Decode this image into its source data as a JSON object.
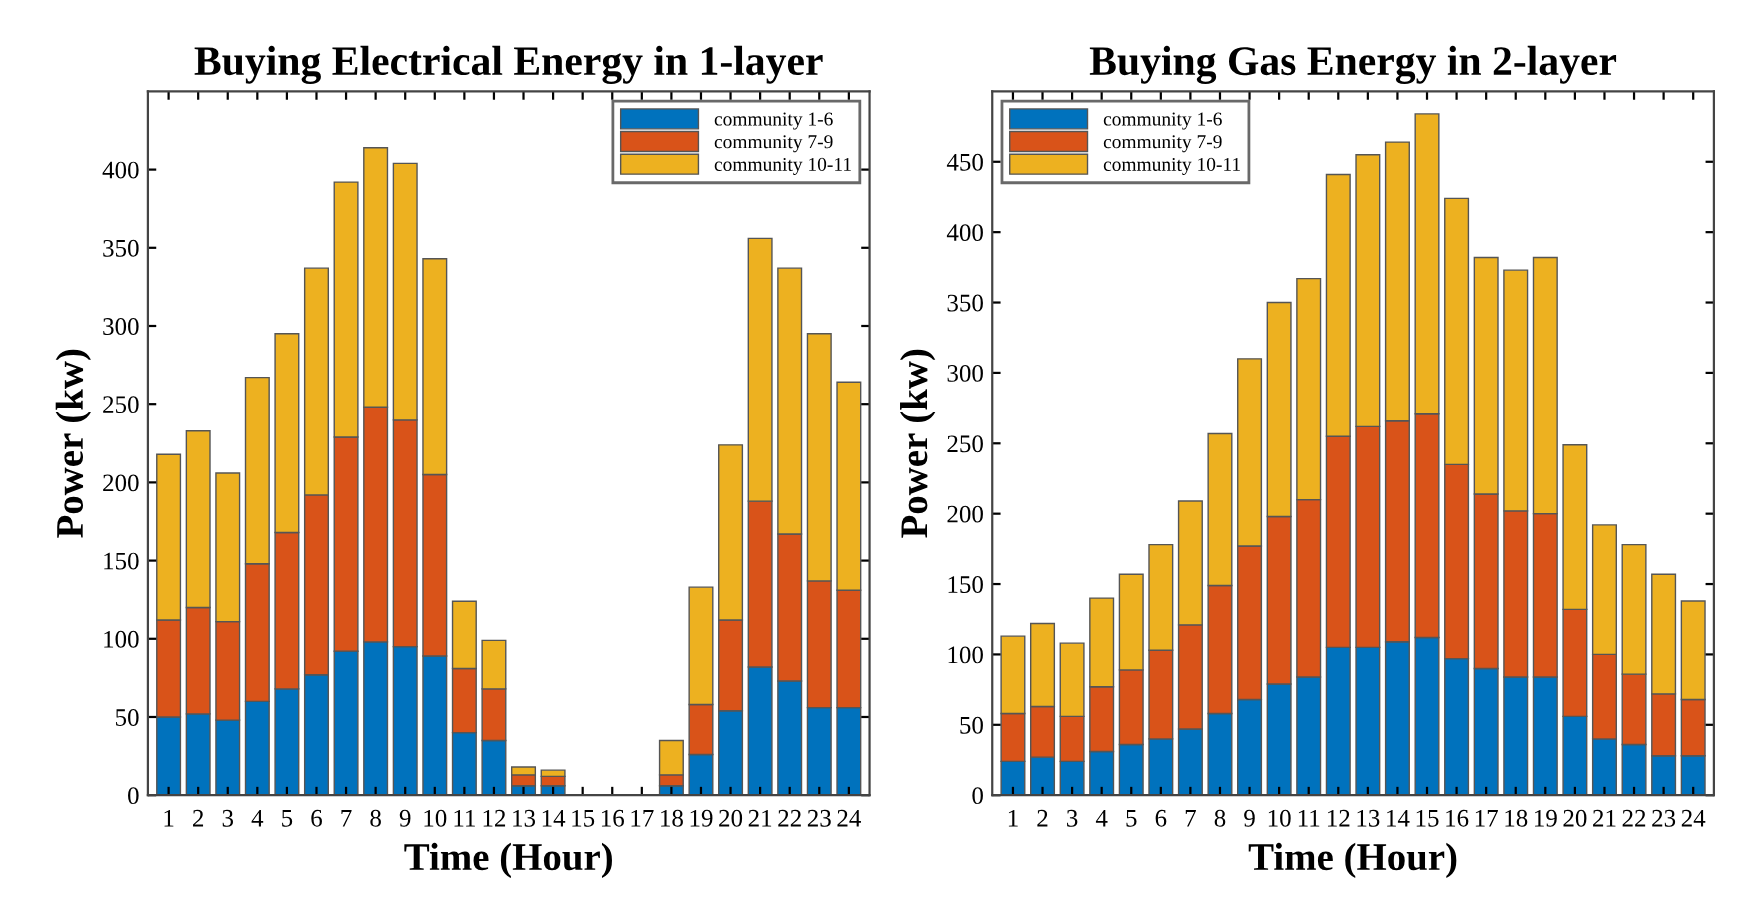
{
  "chart_data": [
    {
      "type": "bar",
      "title": "Buying Electrical Energy in 1-layer",
      "xlabel": "Time (Hour)",
      "ylabel": "Power (kw)",
      "stacked": true,
      "legend": "top right",
      "grid": false,
      "categories": [
        "1",
        "2",
        "3",
        "4",
        "5",
        "6",
        "7",
        "8",
        "9",
        "10",
        "11",
        "12",
        "13",
        "14",
        "15",
        "16",
        "17",
        "18",
        "19",
        "20",
        "21",
        "22",
        "23",
        "24"
      ],
      "ylim": [
        0,
        450
      ],
      "yticks": [
        0,
        50,
        100,
        150,
        200,
        250,
        300,
        350,
        400
      ],
      "series": [
        {
          "name": "community 1-6",
          "color": "#0072bd",
          "values": [
            50,
            52,
            48,
            60,
            68,
            77,
            92,
            98,
            95,
            89,
            40,
            35,
            6,
            6,
            0,
            0,
            0,
            6,
            26,
            54,
            82,
            73,
            56,
            56
          ]
        },
        {
          "name": "community 7-9",
          "color": "#d95319",
          "values": [
            62,
            68,
            63,
            88,
            100,
            115,
            137,
            150,
            145,
            116,
            41,
            33,
            7,
            6,
            0,
            0,
            0,
            7,
            32,
            58,
            106,
            94,
            81,
            75
          ]
        },
        {
          "name": "community 10-11",
          "color": "#edb120",
          "values": [
            106,
            113,
            95,
            119,
            127,
            145,
            163,
            166,
            164,
            138,
            43,
            31,
            5,
            4,
            0,
            0,
            0,
            22,
            75,
            112,
            168,
            170,
            158,
            133
          ]
        }
      ]
    },
    {
      "type": "bar",
      "title": "Buying Gas Energy in 2-layer",
      "xlabel": "Time (Hour)",
      "ylabel": "Power (kw)",
      "stacked": true,
      "legend": "top left",
      "grid": false,
      "categories": [
        "1",
        "2",
        "3",
        "4",
        "5",
        "6",
        "7",
        "8",
        "9",
        "10",
        "11",
        "12",
        "13",
        "14",
        "15",
        "16",
        "17",
        "18",
        "19",
        "20",
        "21",
        "22",
        "23",
        "24"
      ],
      "ylim": [
        0,
        500
      ],
      "yticks": [
        0,
        50,
        100,
        150,
        200,
        250,
        300,
        350,
        400,
        450
      ],
      "series": [
        {
          "name": "community 1-6",
          "color": "#0072bd",
          "values": [
            24,
            27,
            24,
            31,
            36,
            40,
            47,
            58,
            68,
            79,
            84,
            105,
            105,
            109,
            112,
            97,
            90,
            84,
            84,
            56,
            40,
            36,
            28,
            28
          ]
        },
        {
          "name": "community 7-9",
          "color": "#d95319",
          "values": [
            34,
            36,
            32,
            46,
            53,
            63,
            74,
            91,
            109,
            119,
            126,
            150,
            157,
            157,
            159,
            138,
            124,
            118,
            116,
            76,
            60,
            50,
            44,
            40
          ]
        },
        {
          "name": "community 10-11",
          "color": "#edb120",
          "values": [
            55,
            59,
            52,
            63,
            68,
            75,
            88,
            108,
            133,
            152,
            157,
            186,
            193,
            198,
            213,
            189,
            168,
            171,
            182,
            117,
            92,
            92,
            85,
            70
          ]
        }
      ]
    }
  ]
}
